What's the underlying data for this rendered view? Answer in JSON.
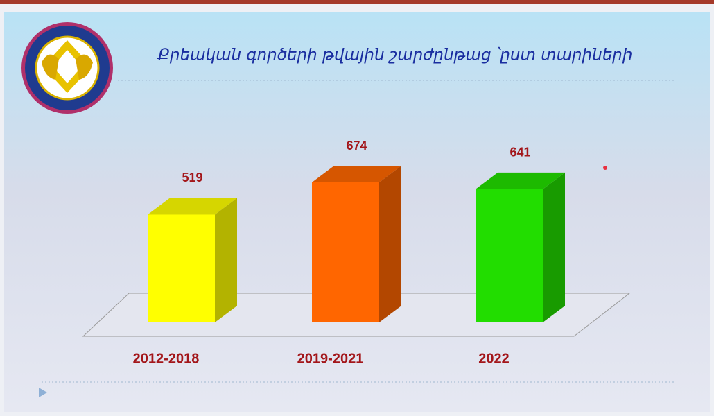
{
  "chart_data": {
    "type": "bar3d",
    "title": "Քրեական գործերի թվային շարժընթաց ՝ըստ տարիների",
    "categories": [
      "2012-2018",
      "2019-2021",
      "2022"
    ],
    "values": [
      519,
      674,
      641
    ],
    "colors": [
      "#ffff00",
      "#ff6600",
      "#22dd00"
    ]
  }
}
